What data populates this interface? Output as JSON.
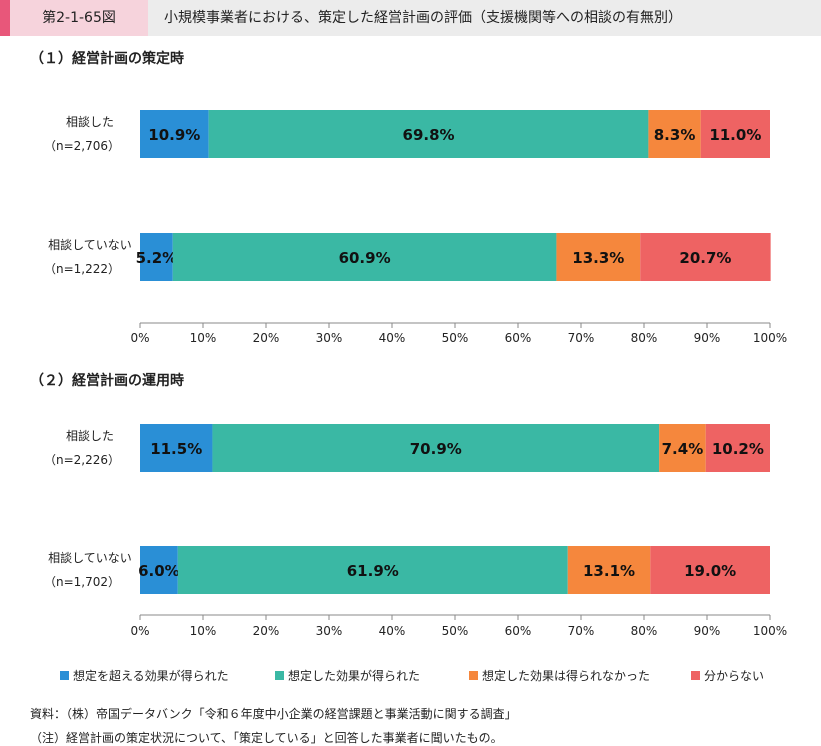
{
  "header": {
    "figure_number": "第2-1-65図",
    "title": "小規模事業者における、策定した経営計画の評価（支援機関等への相談の有無別）"
  },
  "colors": {
    "series": [
      "#2a8fd6",
      "#3ab8a4",
      "#f5873d",
      "#ee6363"
    ],
    "header_accent": "#e8577a",
    "header_figno_bg": "#f6d3dc",
    "header_bg": "#ececec"
  },
  "chart_data": [
    {
      "type": "bar",
      "orientation": "horizontal-stacked",
      "title": "（１）経営計画の策定時",
      "categories": [
        {
          "label": "相談した",
          "n": "（n=2,706）"
        },
        {
          "label": "相談していない",
          "n": "（n=1,222）"
        }
      ],
      "series": [
        {
          "name": "想定を超える効果が得られた",
          "values": [
            10.9,
            5.2
          ],
          "labels": [
            "10.9%",
            "5.2%"
          ]
        },
        {
          "name": "想定した効果が得られた",
          "values": [
            69.8,
            60.9
          ],
          "labels": [
            "69.8%",
            "60.9%"
          ]
        },
        {
          "name": "想定した効果は得られなかった",
          "values": [
            8.3,
            13.3
          ],
          "labels": [
            "8.3%",
            "13.3%"
          ]
        },
        {
          "name": "分からない",
          "values": [
            11.0,
            20.7
          ],
          "labels": [
            "11.0%",
            "20.7%"
          ]
        }
      ],
      "xlim": [
        0,
        100
      ],
      "xticks": [
        "0%",
        "10%",
        "20%",
        "30%",
        "40%",
        "50%",
        "60%",
        "70%",
        "80%",
        "90%",
        "100%"
      ]
    },
    {
      "type": "bar",
      "orientation": "horizontal-stacked",
      "title": "（２）経営計画の運用時",
      "categories": [
        {
          "label": "相談した",
          "n": "（n=2,226）"
        },
        {
          "label": "相談していない",
          "n": "（n=1,702）"
        }
      ],
      "series": [
        {
          "name": "想定を超える効果が得られた",
          "values": [
            11.5,
            6.0
          ],
          "labels": [
            "11.5%",
            "6.0%"
          ]
        },
        {
          "name": "想定した効果が得られた",
          "values": [
            70.9,
            61.9
          ],
          "labels": [
            "70.9%",
            "61.9%"
          ]
        },
        {
          "name": "想定した効果は得られなかった",
          "values": [
            7.4,
            13.1
          ],
          "labels": [
            "7.4%",
            "13.1%"
          ]
        },
        {
          "name": "分からない",
          "values": [
            10.2,
            19.0
          ],
          "labels": [
            "10.2%",
            "19.0%"
          ]
        }
      ],
      "xlim": [
        0,
        100
      ],
      "xticks": [
        "0%",
        "10%",
        "20%",
        "30%",
        "40%",
        "50%",
        "60%",
        "70%",
        "80%",
        "90%",
        "100%"
      ]
    }
  ],
  "legend": [
    "想定を超える効果が得られた",
    "想定した効果が得られた",
    "想定した効果は得られなかった",
    "分からない"
  ],
  "notes": {
    "source": "資料：（株）帝国データバンク「令和６年度中小企業の経営課題と事業活動に関する調査」",
    "note": "（注）経営計画の策定状況について、「策定している」と回答した事業者に聞いたもの。"
  }
}
